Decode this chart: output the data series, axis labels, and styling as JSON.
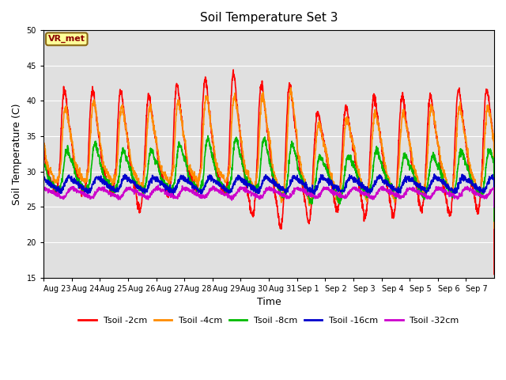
{
  "title": "Soil Temperature Set 3",
  "xlabel": "Time",
  "ylabel": "Soil Temperature (C)",
  "ylim": [
    15,
    50
  ],
  "yticks": [
    15,
    20,
    25,
    30,
    35,
    40,
    45,
    50
  ],
  "bg_color": "#e0e0e0",
  "series": {
    "Tsoil -2cm": {
      "color": "#ff0000",
      "lw": 1.2
    },
    "Tsoil -4cm": {
      "color": "#ff8c00",
      "lw": 1.2
    },
    "Tsoil -8cm": {
      "color": "#00bb00",
      "lw": 1.2
    },
    "Tsoil -16cm": {
      "color": "#0000cc",
      "lw": 1.2
    },
    "Tsoil -32cm": {
      "color": "#cc00cc",
      "lw": 1.2
    }
  },
  "x_labels": [
    "Aug 23",
    "Aug 24",
    "Aug 25",
    "Aug 26",
    "Aug 27",
    "Aug 28",
    "Aug 29",
    "Aug 30",
    "Aug 31",
    "Sep 1",
    "Sep 2",
    "Sep 3",
    "Sep 4",
    "Sep 5",
    "Sep 6",
    "Sep 7"
  ],
  "annotation_text": "VR_met",
  "figsize": [
    6.4,
    4.8
  ],
  "dpi": 100
}
